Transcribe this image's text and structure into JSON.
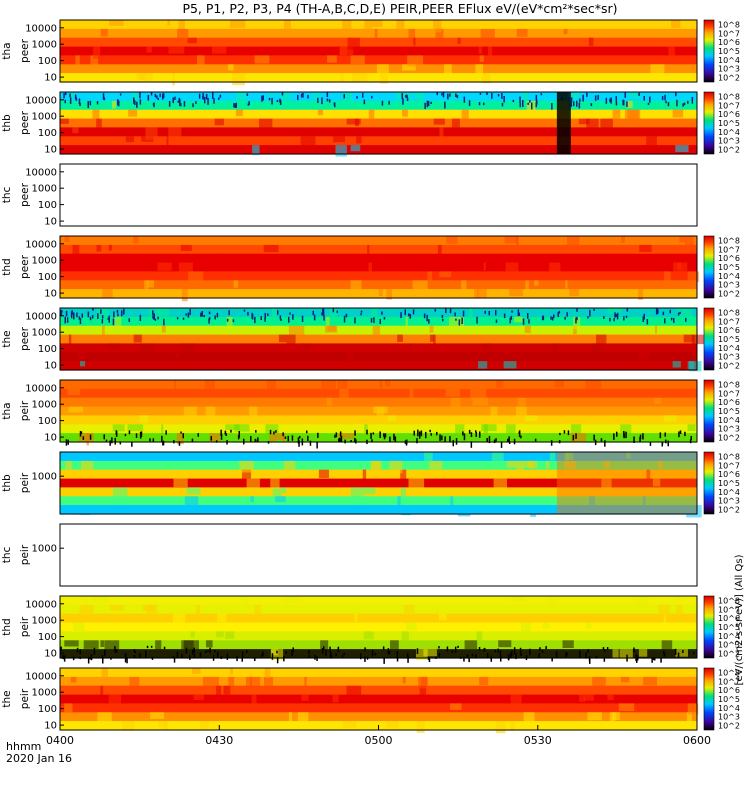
{
  "chart_data": {
    "type": "heatmap",
    "title": "P5, P1, P2, P3, P4 (TH-A,B,C,D,E) PEIR,PEER EFlux eV/(eV*cm²*sec*sr)",
    "x_axis": {
      "label_line1": "hhmm",
      "label_line2": "2020 Jan 16",
      "range": [
        "0400",
        "0600"
      ],
      "ticks": [
        "0400",
        "0430",
        "0500",
        "0530",
        "0600"
      ]
    },
    "colorbar_label": "[eV/(cm2-s-sr-eV)] (All Qs)",
    "colorbar_ticks": [
      "10^2",
      "10^3",
      "10^4",
      "10^5",
      "10^6",
      "10^7",
      "10^8"
    ],
    "panels": [
      {
        "id": "tha-peer",
        "label_line1": "tha",
        "label_line2": "peer",
        "yticks": [
          "10000",
          "1000",
          "100",
          "10"
        ],
        "ylim": [
          5,
          30000
        ],
        "has_data": true,
        "style": "warm",
        "colorbar": true
      },
      {
        "id": "thb-peer",
        "label_line1": "thb",
        "label_line2": "peer",
        "yticks": [
          "10000",
          "1000",
          "100",
          "10"
        ],
        "ylim": [
          5,
          30000
        ],
        "has_data": true,
        "style": "thb_peer",
        "colorbar": true
      },
      {
        "id": "thc-peer",
        "label_line1": "thc",
        "label_line2": "peer",
        "yticks": [
          "10000",
          "1000",
          "100",
          "10"
        ],
        "ylim": [
          5,
          30000
        ],
        "has_data": false,
        "style": "empty",
        "colorbar": false
      },
      {
        "id": "thd-peer",
        "label_line1": "thd",
        "label_line2": "peer",
        "yticks": [
          "10000",
          "1000",
          "100",
          "10"
        ],
        "ylim": [
          5,
          30000
        ],
        "has_data": true,
        "style": "warm_red",
        "colorbar": true
      },
      {
        "id": "the-peer",
        "label_line1": "the",
        "label_line2": "peer",
        "yticks": [
          "10000",
          "1000",
          "100",
          "10"
        ],
        "ylim": [
          5,
          30000
        ],
        "has_data": true,
        "style": "cool_top",
        "colorbar": true
      },
      {
        "id": "tha-peir",
        "label_line1": "tha",
        "label_line2": "peir",
        "yticks": [
          "10000",
          "1000",
          "100",
          "10"
        ],
        "ylim": [
          5,
          30000
        ],
        "has_data": true,
        "style": "warm_noise_bottom",
        "colorbar": true
      },
      {
        "id": "thb-peir",
        "label_line1": "thb",
        "label_line2": "peir",
        "yticks": [
          "1000"
        ],
        "ylim": [
          5,
          30000
        ],
        "has_data": true,
        "style": "thb_peir",
        "colorbar": true
      },
      {
        "id": "thc-peir",
        "label_line1": "thc",
        "label_line2": "peir",
        "yticks": [
          "1000"
        ],
        "ylim": [
          5,
          30000
        ],
        "has_data": false,
        "style": "empty",
        "colorbar": false
      },
      {
        "id": "thd-peir",
        "label_line1": "thd",
        "label_line2": "peir",
        "yticks": [
          "10000",
          "1000",
          "100",
          "10"
        ],
        "ylim": [
          5,
          30000
        ],
        "has_data": true,
        "style": "yellow_black_bottom",
        "colorbar": true
      },
      {
        "id": "the-peir",
        "label_line1": "the",
        "label_line2": "peir",
        "yticks": [
          "10000",
          "1000",
          "100",
          "10"
        ],
        "ylim": [
          5,
          30000
        ],
        "has_data": true,
        "style": "warm",
        "colorbar": true
      }
    ]
  }
}
